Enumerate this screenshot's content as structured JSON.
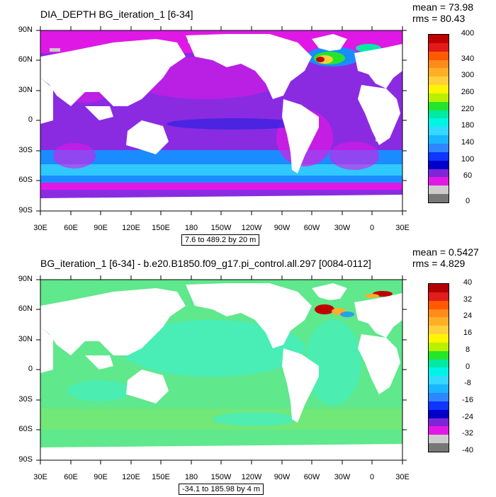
{
  "top": {
    "title": "DIA_DEPTH BG_iteration_1 [6-34]",
    "mean": "mean = 73.98",
    "rms": "rms = 80.43",
    "range": "7.6 to 489.2 by 20 m",
    "lat_labels": [
      "90N",
      "60N",
      "30N",
      "0",
      "30S",
      "60S",
      "90S"
    ],
    "lon_labels": [
      "30E",
      "60E",
      "90E",
      "120E",
      "150E",
      "180",
      "150W",
      "120W",
      "90W",
      "60W",
      "30W",
      "0",
      "30E"
    ],
    "colorbar_colors": [
      "#c00000",
      "#e21a1a",
      "#ff5a00",
      "#ff8c1a",
      "#ffae28",
      "#ffcf3c",
      "#fff500",
      "#b9f000",
      "#25e52a",
      "#00e9a5",
      "#00f4e6",
      "#35d8ff",
      "#18b6ff",
      "#2f87ff",
      "#1035ff",
      "#0000c8",
      "#7f25d8",
      "#e218e6",
      "#cccccc",
      "#777777"
    ],
    "colorbar_labels": [
      "400",
      "340",
      "300",
      "260",
      "220",
      "180",
      "140",
      "100",
      "60",
      "0"
    ]
  },
  "bottom": {
    "title": "BG_iteration_1 [6-34] - b.e20.B1850.f09_g17.pi_control.all.297 [0084-0112]",
    "mean": "mean = 0.5427",
    "rms": "rms = 4.829",
    "range": "-34.1 to 185.98 by 4 m",
    "lat_labels": [
      "90N",
      "60N",
      "30N",
      "0",
      "30S",
      "60S",
      "90S"
    ],
    "lon_labels": [
      "30E",
      "60E",
      "90E",
      "120E",
      "150E",
      "180",
      "150W",
      "120W",
      "90W",
      "60W",
      "30W",
      "0",
      "30E"
    ],
    "colorbar_colors": [
      "#b30000",
      "#e11d1d",
      "#ff5a00",
      "#ff8c1a",
      "#ffae28",
      "#ffd03c",
      "#fff500",
      "#b9f000",
      "#25e52a",
      "#00e9a5",
      "#00f4e6",
      "#35d8ff",
      "#18b6ff",
      "#2f87ff",
      "#1035ff",
      "#0000c8",
      "#7f25d8",
      "#e218e6",
      "#cccccc",
      "#777777"
    ],
    "colorbar_labels": [
      "40",
      "32",
      "24",
      "16",
      "8",
      "0",
      "-8",
      "-16",
      "-24",
      "-32",
      "-40"
    ]
  },
  "colors": {
    "land": "#ffffff",
    "sea_ice": "#c8c8c8",
    "top_ocean_main": "#8a2be2",
    "top_ocean_coastal": "#e018e6",
    "top_south_blue": "#1a8cff",
    "bottom_ocean_main": "#5fe88c",
    "bottom_ocean_light": "#40f0c8",
    "bottom_hot": "#c00000"
  }
}
